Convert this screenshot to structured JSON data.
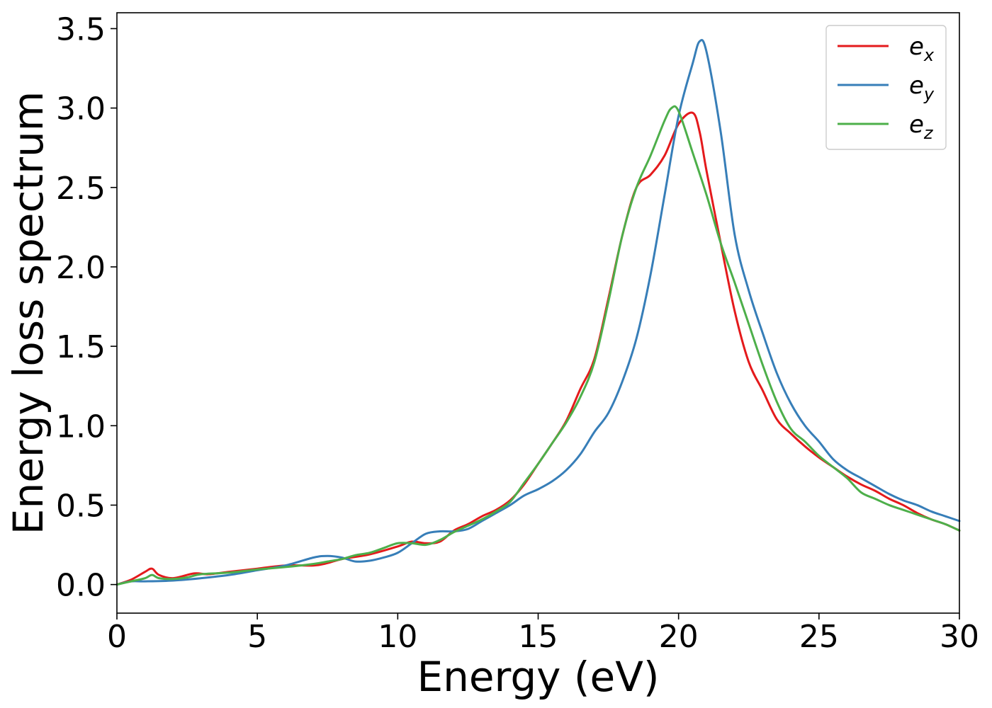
{
  "chart_data": {
    "type": "line",
    "xlabel": "Energy (eV)",
    "ylabel": "Energy loss spectrum",
    "xlim": [
      0,
      30
    ],
    "ylim": [
      -0.18,
      3.6
    ],
    "xticks": [
      0,
      5,
      10,
      15,
      20,
      25,
      30
    ],
    "xtick_labels": [
      "0",
      "5",
      "10",
      "15",
      "20",
      "25",
      "30"
    ],
    "yticks": [
      0.0,
      0.5,
      1.0,
      1.5,
      2.0,
      2.5,
      3.0,
      3.5
    ],
    "ytick_labels": [
      "0.0",
      "0.5",
      "1.0",
      "1.5",
      "2.0",
      "2.5",
      "3.0",
      "3.5"
    ],
    "grid": false,
    "legend_position": "top-right",
    "series": [
      {
        "name": "e_x",
        "legend_base": "e",
        "legend_sub": "x",
        "color": "#e41a1c",
        "x": [
          0,
          0.5,
          1.0,
          1.25,
          1.5,
          2.0,
          2.75,
          3.25,
          4.0,
          5.0,
          6.0,
          7.0,
          7.5,
          8.0,
          9.0,
          10.0,
          10.5,
          11.0,
          11.5,
          12.0,
          12.5,
          13.0,
          13.5,
          14.0,
          14.5,
          15.0,
          15.5,
          16.0,
          16.5,
          17.0,
          17.5,
          18.0,
          18.5,
          19.0,
          19.5,
          20.0,
          20.5,
          20.75,
          21.0,
          21.5,
          22.0,
          22.5,
          23.0,
          23.5,
          24.0,
          24.5,
          25.0,
          25.5,
          26.0,
          26.5,
          27.0,
          27.5,
          28.0,
          28.5,
          29.0,
          29.5,
          30.0
        ],
        "y": [
          0.0,
          0.03,
          0.08,
          0.1,
          0.06,
          0.04,
          0.07,
          0.065,
          0.08,
          0.1,
          0.12,
          0.12,
          0.135,
          0.16,
          0.19,
          0.24,
          0.27,
          0.26,
          0.27,
          0.34,
          0.38,
          0.43,
          0.47,
          0.53,
          0.63,
          0.76,
          0.89,
          1.03,
          1.23,
          1.42,
          1.8,
          2.2,
          2.5,
          2.58,
          2.7,
          2.9,
          2.97,
          2.85,
          2.6,
          2.15,
          1.72,
          1.4,
          1.22,
          1.04,
          0.95,
          0.87,
          0.8,
          0.74,
          0.68,
          0.63,
          0.59,
          0.54,
          0.5,
          0.45,
          0.41,
          0.38,
          0.34
        ]
      },
      {
        "name": "e_y",
        "legend_base": "e",
        "legend_sub": "y",
        "color": "#377eb8",
        "x": [
          0,
          0.5,
          1.0,
          2.0,
          3.0,
          4.0,
          5.0,
          6.0,
          7.0,
          7.5,
          8.0,
          8.5,
          9.0,
          9.5,
          10.0,
          10.5,
          11.0,
          11.5,
          12.0,
          12.5,
          13.0,
          13.5,
          14.0,
          14.5,
          15.0,
          15.5,
          16.0,
          16.5,
          17.0,
          17.5,
          18.0,
          18.5,
          19.0,
          19.5,
          20.0,
          20.5,
          20.75,
          21.0,
          21.5,
          22.0,
          22.5,
          23.0,
          23.5,
          24.0,
          24.5,
          25.0,
          25.5,
          26.0,
          26.5,
          27.0,
          27.5,
          28.0,
          28.5,
          29.0,
          29.5,
          30.0
        ],
        "y": [
          0.0,
          0.02,
          0.02,
          0.025,
          0.04,
          0.06,
          0.09,
          0.12,
          0.17,
          0.18,
          0.17,
          0.145,
          0.15,
          0.17,
          0.2,
          0.26,
          0.32,
          0.335,
          0.335,
          0.35,
          0.4,
          0.45,
          0.5,
          0.56,
          0.6,
          0.65,
          0.72,
          0.82,
          0.96,
          1.08,
          1.28,
          1.55,
          1.95,
          2.45,
          2.95,
          3.28,
          3.42,
          3.35,
          2.85,
          2.2,
          1.85,
          1.58,
          1.33,
          1.14,
          1.0,
          0.9,
          0.79,
          0.72,
          0.67,
          0.62,
          0.57,
          0.53,
          0.5,
          0.46,
          0.43,
          0.4
        ]
      },
      {
        "name": "e_z",
        "legend_base": "e",
        "legend_sub": "z",
        "color": "#4daf4a",
        "x": [
          0,
          0.5,
          1.0,
          1.25,
          1.5,
          2.0,
          2.5,
          3.0,
          4.0,
          5.0,
          6.0,
          7.0,
          7.5,
          8.0,
          8.5,
          9.0,
          9.5,
          10.0,
          10.5,
          11.0,
          11.5,
          12.0,
          12.5,
          13.0,
          13.5,
          14.0,
          14.5,
          15.0,
          15.5,
          16.0,
          16.5,
          17.0,
          17.5,
          18.0,
          18.5,
          19.0,
          19.5,
          19.75,
          20.0,
          20.5,
          21.0,
          21.5,
          22.0,
          22.5,
          23.0,
          23.5,
          24.0,
          24.5,
          25.0,
          25.5,
          26.0,
          26.5,
          27.0,
          27.5,
          28.0,
          28.5,
          29.0,
          29.5,
          30.0
        ],
        "y": [
          0.0,
          0.02,
          0.04,
          0.06,
          0.04,
          0.035,
          0.045,
          0.065,
          0.075,
          0.095,
          0.11,
          0.13,
          0.145,
          0.16,
          0.185,
          0.2,
          0.23,
          0.26,
          0.26,
          0.25,
          0.28,
          0.33,
          0.37,
          0.41,
          0.46,
          0.52,
          0.64,
          0.76,
          0.89,
          1.02,
          1.18,
          1.4,
          1.78,
          2.2,
          2.5,
          2.7,
          2.92,
          3.0,
          2.98,
          2.72,
          2.45,
          2.15,
          1.9,
          1.64,
          1.38,
          1.15,
          0.98,
          0.9,
          0.81,
          0.74,
          0.67,
          0.58,
          0.54,
          0.5,
          0.47,
          0.44,
          0.41,
          0.38,
          0.34
        ]
      }
    ]
  }
}
